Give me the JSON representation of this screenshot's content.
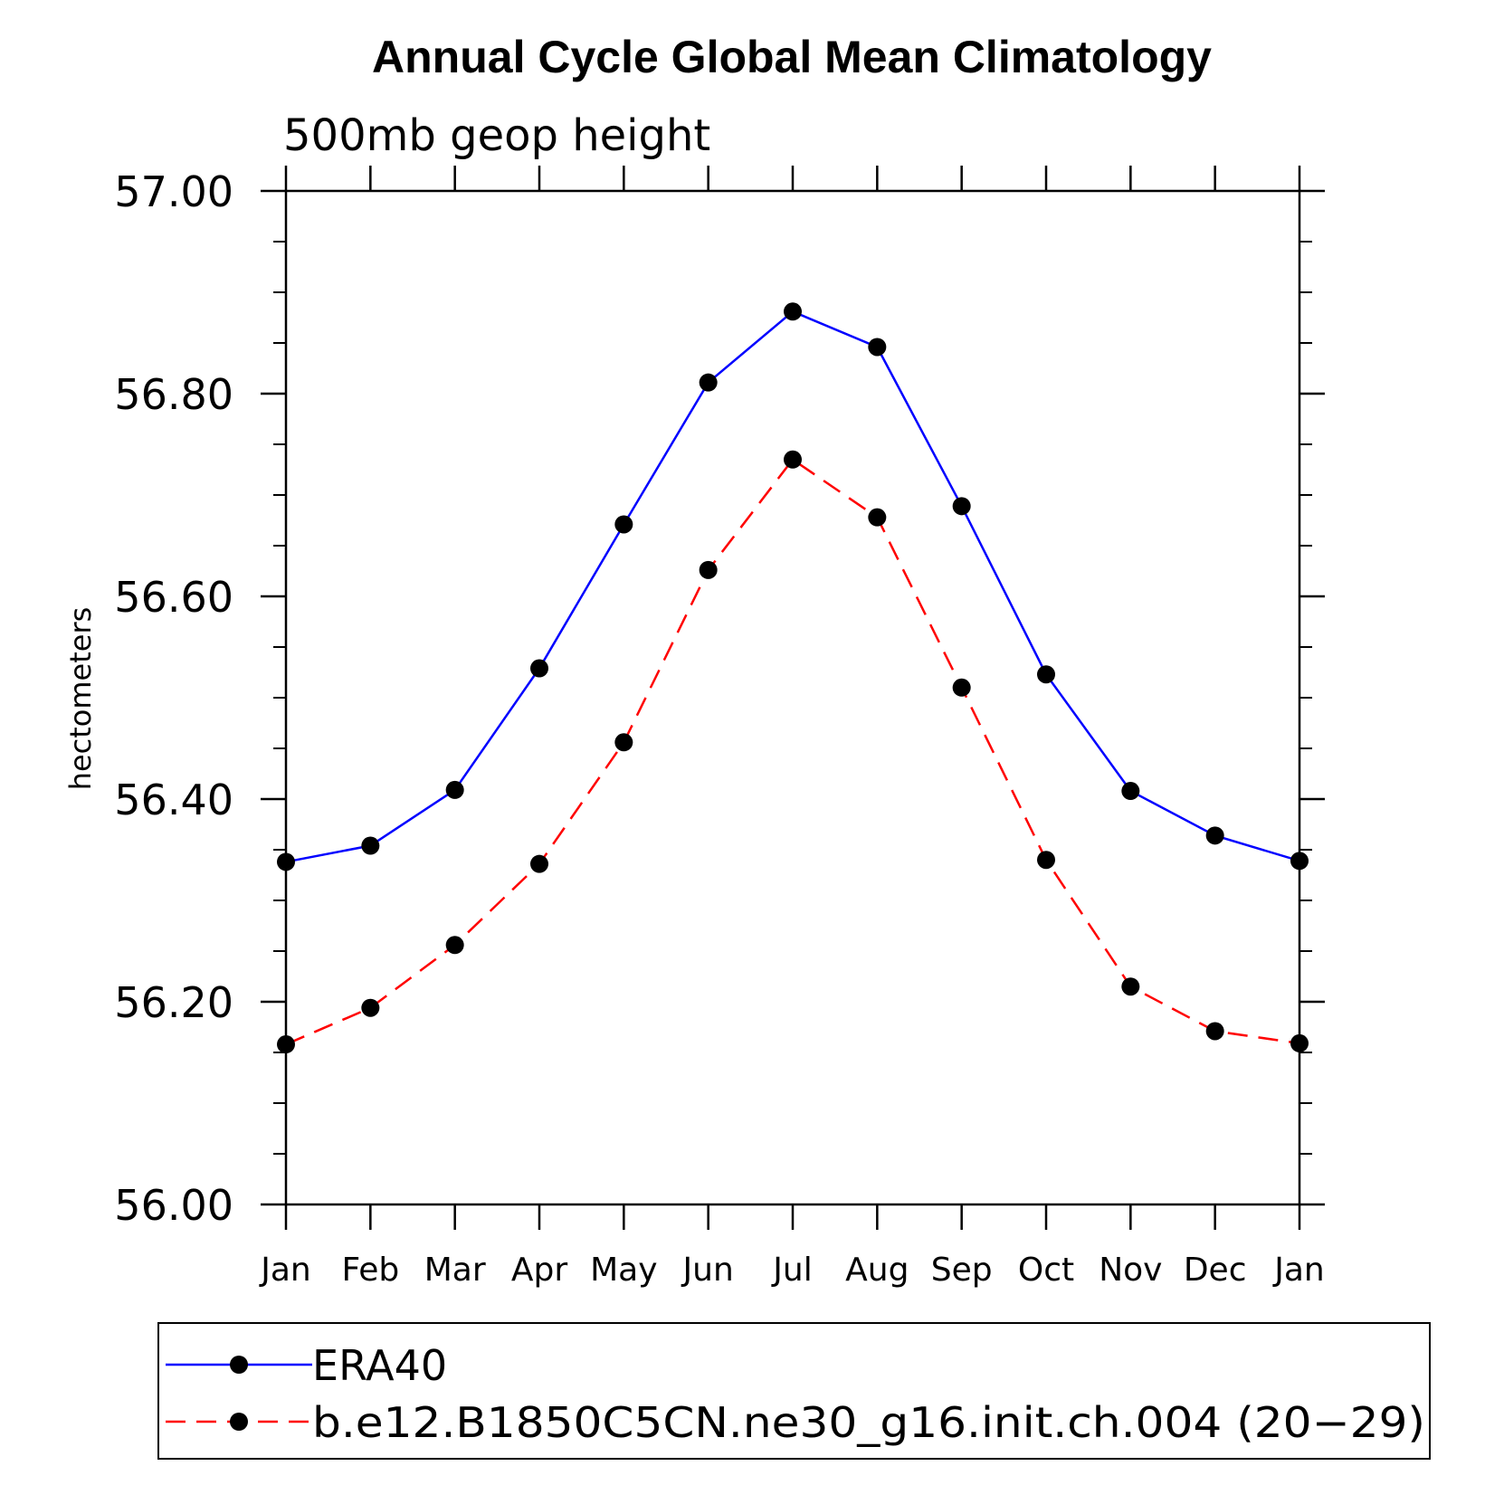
{
  "chart_data": {
    "type": "line",
    "title": "Annual Cycle Global Mean Climatology",
    "subtitle": "500mb geop height",
    "xlabel": "",
    "ylabel": "hectometers",
    "categories": [
      "Jan",
      "Feb",
      "Mar",
      "Apr",
      "May",
      "Jun",
      "Jul",
      "Aug",
      "Sep",
      "Oct",
      "Nov",
      "Dec",
      "Jan"
    ],
    "ylim": [
      56.0,
      57.0
    ],
    "y_ticks": [
      "56.00",
      "56.20",
      "56.40",
      "56.60",
      "56.80",
      "57.00"
    ],
    "y_minor_step": 0.05,
    "series": [
      {
        "name": "ERA40",
        "color": "#0000ff",
        "dash": "solid",
        "marker": "filled-circle",
        "values": [
          56.338,
          56.354,
          56.409,
          56.529,
          56.671,
          56.811,
          56.881,
          56.846,
          56.689,
          56.523,
          56.408,
          56.364,
          56.339
        ]
      },
      {
        "name": "b.e12.B1850C5CN.ne30_g16.init.ch.004 (20−29)",
        "color": "#ff0000",
        "dash": "dashed",
        "marker": "filled-circle",
        "values": [
          56.158,
          56.194,
          56.256,
          56.336,
          56.456,
          56.626,
          56.735,
          56.678,
          56.51,
          56.34,
          56.215,
          56.171,
          56.159
        ]
      }
    ],
    "legend": {
      "position": "bottom"
    }
  }
}
